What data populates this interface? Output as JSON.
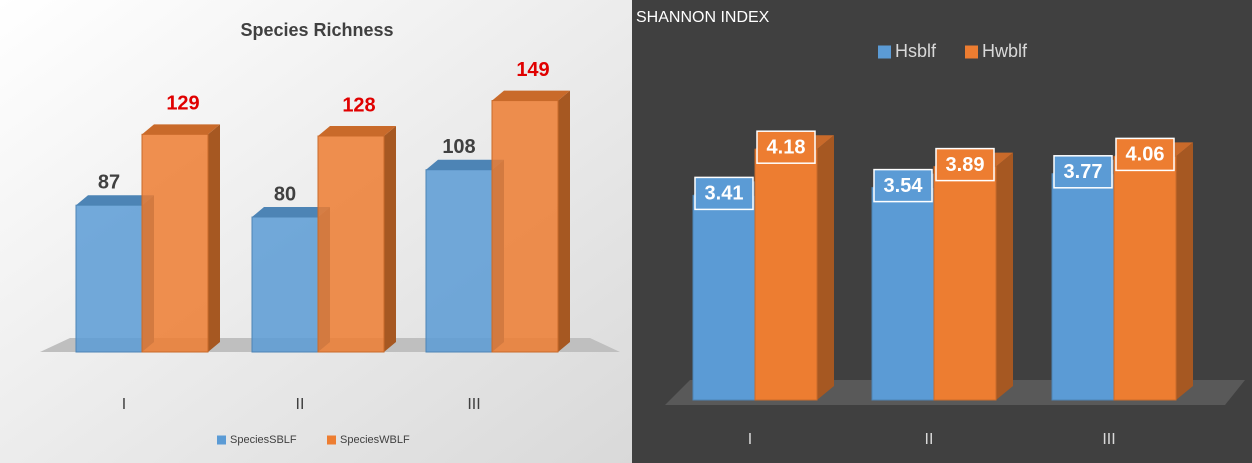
{
  "chart_data": [
    {
      "type": "bar3d",
      "title": "Species Richness",
      "categories": [
        "I",
        "II",
        "III"
      ],
      "series": [
        {
          "name": "SpeciesSBLF",
          "color": "#5b9bd5",
          "values": [
            87,
            80,
            108
          ]
        },
        {
          "name": "SpeciesWBLF",
          "color": "#ed7d31",
          "values": [
            129,
            128,
            149
          ]
        }
      ],
      "ylim": [
        0,
        160
      ],
      "legend": "bottom"
    },
    {
      "type": "bar3d",
      "title": "SHANNON INDEX",
      "categories": [
        "I",
        "II",
        "III"
      ],
      "series": [
        {
          "name": "Hsblf",
          "color": "#5b9bd5",
          "values": [
            3.41,
            3.54,
            3.77
          ]
        },
        {
          "name": "Hwblf",
          "color": "#ed7d31",
          "values": [
            4.18,
            3.89,
            4.06
          ]
        }
      ],
      "ylim": [
        0,
        5
      ],
      "legend": "top"
    }
  ]
}
